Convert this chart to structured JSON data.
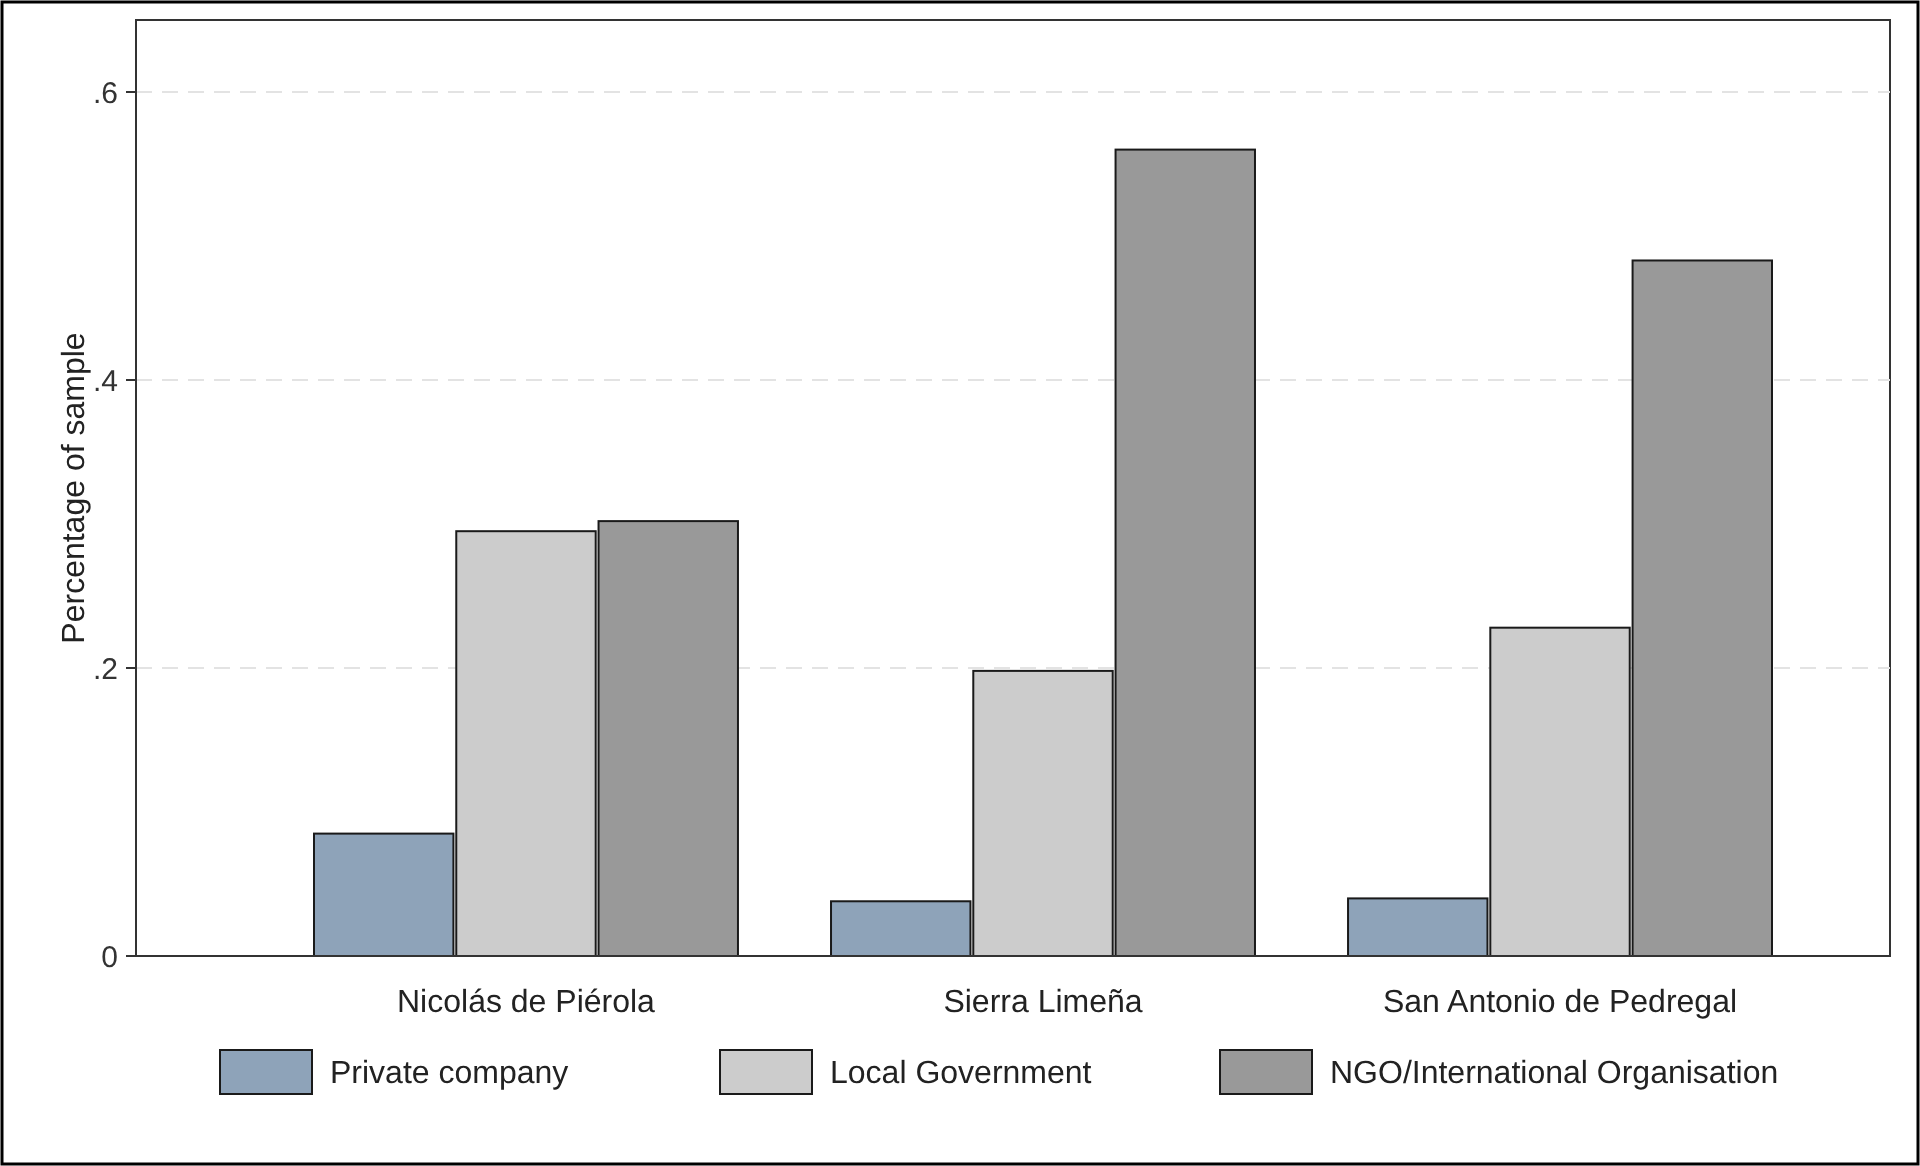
{
  "chart_data": {
    "type": "bar",
    "ylabel": "Percentage of sample",
    "categories": [
      "Nicolás de Piérola",
      "Sierra Limeña",
      "San Antonio de Pedregal"
    ],
    "series": [
      {
        "name": "Private company",
        "color": "#8ea3b9",
        "values": [
          0.085,
          0.038,
          0.04
        ]
      },
      {
        "name": "Local Government",
        "color": "#cccccc",
        "values": [
          0.295,
          0.198,
          0.228
        ]
      },
      {
        "name": "NGO/International Organisation",
        "color": "#999999",
        "values": [
          0.302,
          0.56,
          0.483
        ]
      }
    ],
    "ylim": [
      0,
      0.65
    ],
    "yticks": [
      0,
      {
        "value": 0.2,
        "label": ".2"
      },
      {
        "value": 0.4,
        "label": ".4"
      },
      {
        "value": 0.6,
        "label": ".6"
      }
    ],
    "grid": "y",
    "legend": "bottom"
  }
}
